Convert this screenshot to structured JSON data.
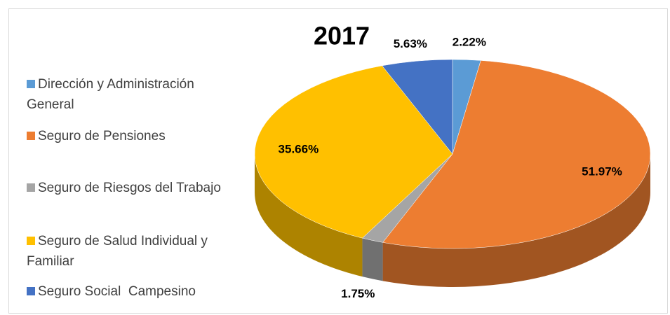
{
  "chart_data": {
    "type": "pie3d",
    "title": "2017",
    "categories": [
      "Dirección y Administración General",
      "Seguro de Pensiones",
      "Seguro de Riesgos del Trabajo",
      "Seguro de Salud Individual y Familiar",
      "Seguro Social  Campesino"
    ],
    "values": [
      2.22,
      51.97,
      1.75,
      35.66,
      5.63
    ],
    "value_labels": [
      "2.22%",
      "51.97%",
      "1.75%",
      "35.66%",
      "5.63%"
    ],
    "colors": [
      "#5b9bd5",
      "#ed7d31",
      "#a5a5a5",
      "#ffc000",
      "#4472c4"
    ],
    "legend": "left"
  }
}
